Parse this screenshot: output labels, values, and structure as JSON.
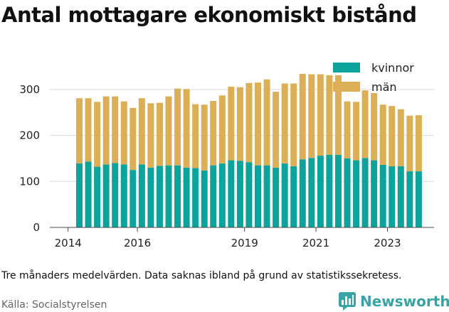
{
  "title": "Antal mottagare ekonomiskt bistånd",
  "note": "Tre månaders medelvärden. Data saknas ibland på grund av statistikssekretess.",
  "source": "Källa: Socialstyrelsen",
  "brand": {
    "name": "Newsworthy",
    "icon": "newsworthy-logo-icon",
    "color": "#39a3a6"
  },
  "chart_data": {
    "type": "bar",
    "stacked": true,
    "title": "Antal mottagare ekonomiskt bistånd",
    "xlabel": "",
    "ylabel": "",
    "ylim": [
      0,
      340
    ],
    "yticks": [
      0,
      100,
      200,
      300
    ],
    "xticks": [
      "2014",
      "2016",
      "2019",
      "2021",
      "2023"
    ],
    "grid": true,
    "legend": "top-right",
    "categories": [
      "2014 Q2",
      "2014 Q3",
      "2014 Q4",
      "2015 Q1",
      "2015 Q2",
      "2015 Q3",
      "2015 Q4",
      "2016 Q1",
      "2016 Q2",
      "2016 Q3",
      "2016 Q4",
      "2017 Q1",
      "2017 Q2",
      "2017 Q3",
      "2017 Q4",
      "2018 Q1",
      "2018 Q2",
      "2018 Q3",
      "2018 Q4",
      "2019 Q1",
      "2019 Q2",
      "2019 Q3",
      "2019 Q4",
      "2020 Q1",
      "2020 Q2",
      "2020 Q3",
      "2020 Q4",
      "2021 Q1",
      "2021 Q2",
      "2021 Q3",
      "2021 Q4",
      "2022 Q1",
      "2022 Q2",
      "2022 Q3",
      "2022 Q4",
      "2023 Q1",
      "2023 Q2",
      "2023 Q3",
      "2023 Q4"
    ],
    "series": [
      {
        "name": "kvinnor",
        "color": "#0ba39b",
        "values": [
          139,
          143,
          132,
          137,
          140,
          137,
          125,
          137,
          130,
          134,
          135,
          135,
          130,
          129,
          124,
          135,
          139,
          146,
          145,
          142,
          135,
          135,
          130,
          139,
          133,
          148,
          151,
          156,
          158,
          158,
          150,
          146,
          151,
          146,
          136,
          133,
          133,
          122,
          122
        ]
      },
      {
        "name": "män",
        "color": "#dcaf56",
        "values": [
          142,
          138,
          141,
          148,
          145,
          137,
          135,
          144,
          140,
          137,
          150,
          167,
          171,
          139,
          143,
          140,
          148,
          160,
          160,
          172,
          180,
          187,
          165,
          174,
          180,
          186,
          182,
          177,
          173,
          173,
          124,
          127,
          147,
          146,
          131,
          131,
          124,
          121,
          122
        ]
      }
    ]
  }
}
